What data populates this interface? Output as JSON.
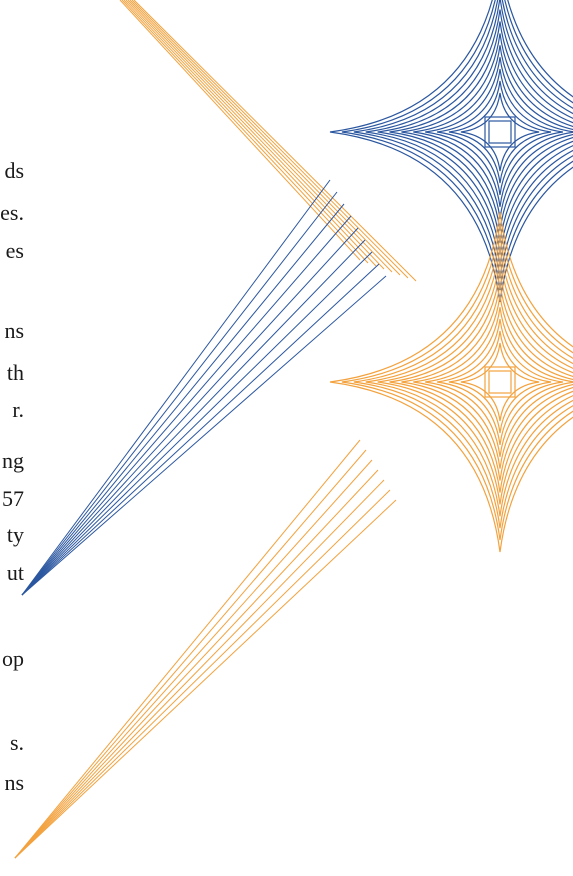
{
  "colors": {
    "blue": "#2b57a0",
    "orange": "#f3a23e",
    "text": "#1a1a1a",
    "background": "#ffffff"
  },
  "text_fragments": [
    "ds",
    "es.",
    "es",
    "ns",
    "th",
    "r.",
    "ng",
    "57",
    "ty",
    "ut",
    "op",
    "s.",
    "ns"
  ]
}
